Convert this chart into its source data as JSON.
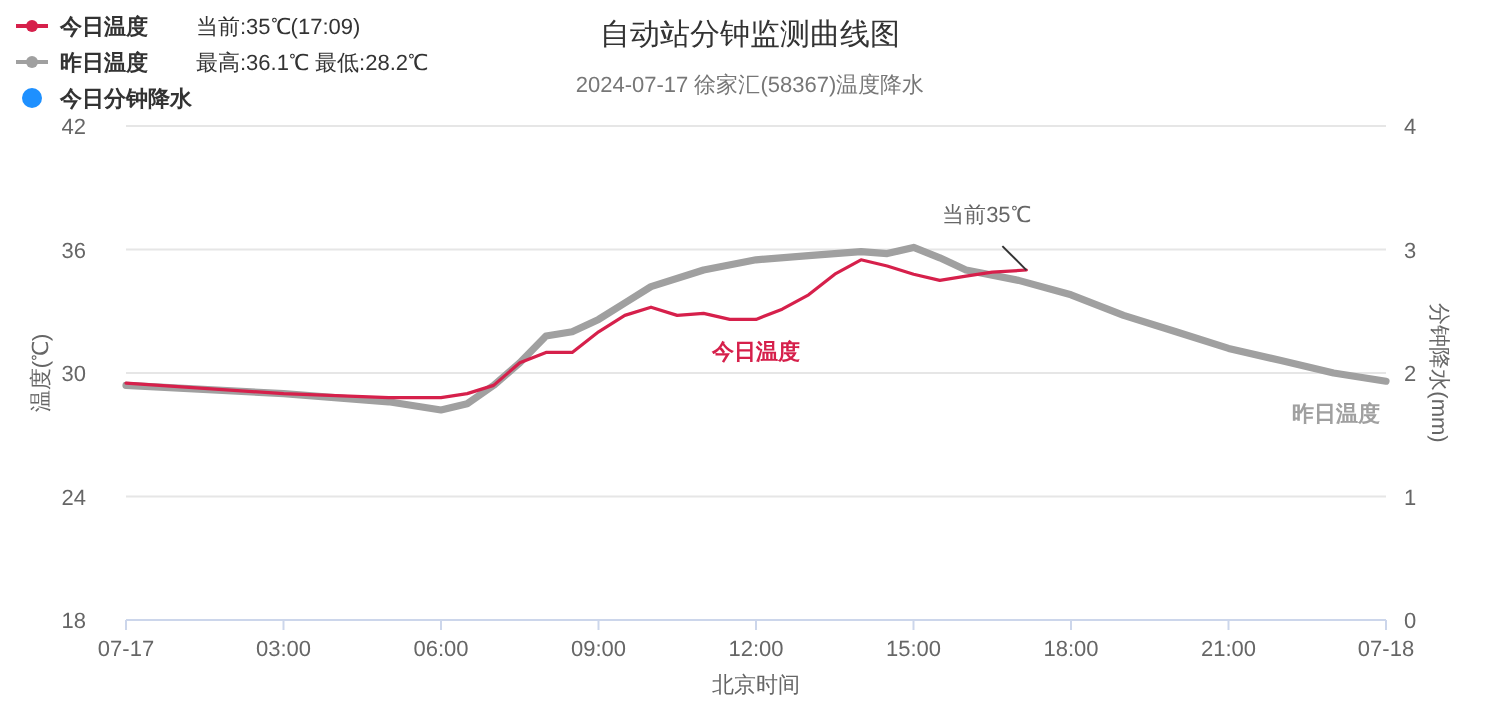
{
  "chart_data": {
    "type": "line",
    "title": "自动站分钟监测曲线图",
    "subtitle": "2024-07-17 徐家汇(58367)温度降水",
    "xlabel": "北京时间",
    "ylabel": "温度(℃)",
    "y2label": "分钟降水(mm)",
    "xlim": [
      0,
      24
    ],
    "xticks": [
      {
        "value": 0,
        "label": "07-17"
      },
      {
        "value": 3,
        "label": "03:00"
      },
      {
        "value": 6,
        "label": "06:00"
      },
      {
        "value": 9,
        "label": "09:00"
      },
      {
        "value": 12,
        "label": "12:00"
      },
      {
        "value": 15,
        "label": "15:00"
      },
      {
        "value": 18,
        "label": "18:00"
      },
      {
        "value": 21,
        "label": "21:00"
      },
      {
        "value": 24,
        "label": "07-18"
      }
    ],
    "ylim": [
      18,
      42
    ],
    "yticks": [
      18,
      24,
      30,
      36,
      42
    ],
    "y2lim": [
      0,
      4
    ],
    "y2ticks": [
      0,
      1,
      2,
      3,
      4
    ],
    "grid": "y",
    "legend": "top left",
    "series": [
      {
        "name": "今日温度",
        "color": "#d6204b",
        "x": [
          0,
          3,
          5,
          6,
          6.5,
          7,
          7.5,
          8,
          8.5,
          9,
          9.5,
          10,
          10.5,
          11,
          11.5,
          12,
          12.5,
          13,
          13.5,
          14,
          14.5,
          15,
          15.5,
          16,
          16.5,
          17.15
        ],
        "values": [
          29.5,
          29.0,
          28.8,
          28.8,
          29.0,
          29.4,
          30.5,
          31.0,
          31.0,
          32.0,
          32.8,
          33.2,
          32.8,
          32.9,
          32.6,
          32.6,
          33.1,
          33.8,
          34.8,
          35.5,
          35.2,
          34.8,
          34.5,
          34.7,
          34.9,
          35.0
        ]
      },
      {
        "name": "昨日温度",
        "color": "#a0a0a0",
        "x": [
          0,
          3,
          5,
          6,
          6.5,
          7,
          7.5,
          8,
          8.5,
          9,
          9.5,
          10,
          11,
          12,
          13,
          14,
          14.5,
          15,
          15.5,
          16,
          17,
          18,
          19,
          20,
          21,
          22,
          23,
          24
        ],
        "values": [
          29.4,
          29.0,
          28.6,
          28.2,
          28.5,
          29.4,
          30.5,
          31.8,
          32.0,
          32.6,
          33.4,
          34.2,
          35.0,
          35.5,
          35.7,
          35.9,
          35.8,
          36.1,
          35.6,
          35.0,
          34.5,
          33.8,
          32.8,
          32.0,
          31.2,
          30.6,
          30.0,
          29.6
        ]
      },
      {
        "name": "今日分钟降水",
        "color": "#1e90ff",
        "axis": "y2"
      }
    ],
    "annotations": [
      "当前:35℃(17:09)",
      "最高:36.1℃ 最低:28.2℃",
      {
        "text": "当前35℃",
        "x": 17.15,
        "y": 35
      }
    ]
  }
}
